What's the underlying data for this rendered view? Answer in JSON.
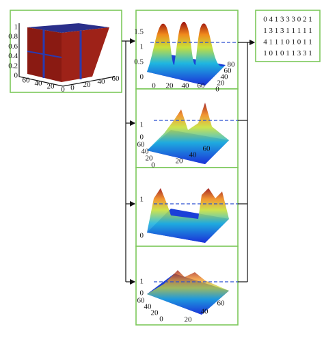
{
  "input_panel": {
    "z_ticks": [
      "1",
      "0.8",
      "0.6",
      "0.4",
      "0.2",
      "0"
    ],
    "left_ticks": [
      "60",
      "40",
      "20",
      "0"
    ],
    "right_ticks": [
      "0",
      "20",
      "40",
      "60"
    ]
  },
  "panels": [
    {
      "z_ticks": [
        "1.5",
        "1",
        "0.5",
        "0"
      ],
      "left_ticks": [
        "0",
        "20",
        "40",
        "60"
      ],
      "right_ticks": [
        "80",
        "60",
        "40",
        "20",
        "0"
      ]
    },
    {
      "z_ticks": [
        "1",
        "0"
      ],
      "left_ticks": [
        "60",
        "40",
        "20",
        "0"
      ],
      "right_ticks": [
        "20",
        "40",
        "60"
      ]
    },
    {
      "z_ticks": [
        "1",
        "0"
      ],
      "left_ticks": [],
      "right_ticks": []
    },
    {
      "z_ticks": [
        "1",
        "0"
      ],
      "left_ticks": [
        "60",
        "40",
        "20",
        "0"
      ],
      "right_ticks": [
        "20",
        "40",
        "60"
      ]
    }
  ],
  "output_matrix": {
    "rows": [
      "0 4 1 3 3 3 0 2 1",
      "1 3 1 3 1 1 1 1 1",
      "4 1 1 1 0 1 0 1 1",
      "1 0 1 0 1 1 3 3 1"
    ]
  }
}
